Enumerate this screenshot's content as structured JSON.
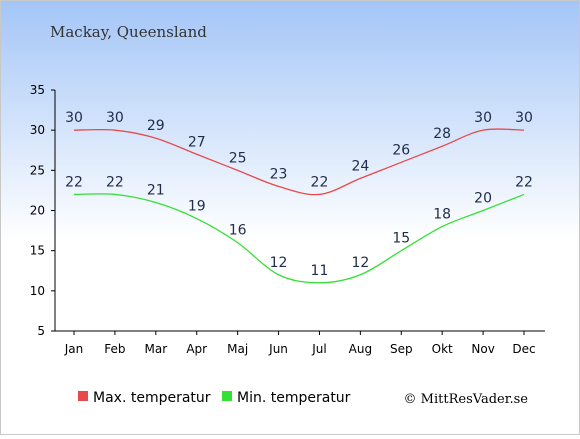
{
  "title": "Mackay, Queensland",
  "credit": "© MittResVader.se",
  "chart_data": {
    "type": "line",
    "categories": [
      "Jan",
      "Feb",
      "Mar",
      "Apr",
      "Maj",
      "Jun",
      "Jul",
      "Aug",
      "Sep",
      "Okt",
      "Nov",
      "Dec"
    ],
    "ylim": [
      5,
      35
    ],
    "yticks": [
      5,
      10,
      15,
      20,
      25,
      30,
      35
    ],
    "grid": false,
    "legend_position": "bottom-left",
    "series": [
      {
        "name": "Max. temperatur",
        "color": "#e84a4a",
        "values": [
          30,
          30,
          29,
          27,
          25,
          23,
          22,
          24,
          26,
          28,
          30,
          30
        ]
      },
      {
        "name": "Min. temperatur",
        "color": "#33e033",
        "values": [
          22,
          22,
          21,
          19,
          16,
          12,
          11,
          12,
          15,
          18,
          20,
          22
        ]
      }
    ]
  },
  "colors": {
    "background_top": "#a3c5f7",
    "background_bottom": "#ffffff"
  }
}
